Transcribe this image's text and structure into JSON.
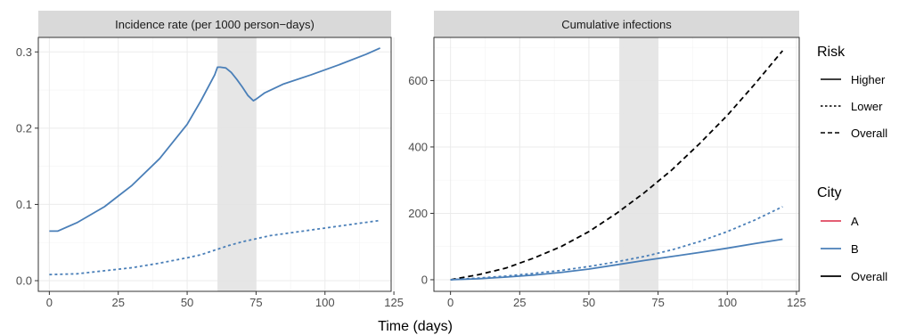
{
  "chart_data": [
    {
      "type": "line",
      "title": "Incidence rate (per 1000 person−days)",
      "xlim": [
        -4,
        124
      ],
      "ylim": [
        -0.014,
        0.319
      ],
      "x_ticks": [
        0,
        25,
        50,
        75,
        100,
        125
      ],
      "y_ticks": [
        0.0,
        0.1,
        0.2,
        0.3
      ],
      "y_tick_labels": [
        "0.0",
        "0.1",
        "0.2",
        "0.3"
      ],
      "shaded_interval": [
        61,
        75
      ],
      "series": [
        {
          "city": "B",
          "risk": "Higher",
          "x": [
            0,
            3,
            10,
            20,
            30,
            40,
            50,
            55,
            60,
            61,
            62,
            64,
            66,
            68,
            70,
            72,
            74,
            75,
            78,
            85,
            95,
            105,
            115,
            120
          ],
          "y": [
            0.065,
            0.065,
            0.076,
            0.097,
            0.125,
            0.16,
            0.205,
            0.236,
            0.27,
            0.28,
            0.28,
            0.279,
            0.273,
            0.264,
            0.254,
            0.243,
            0.236,
            0.238,
            0.246,
            0.258,
            0.27,
            0.283,
            0.297,
            0.305
          ]
        },
        {
          "city": "B",
          "risk": "Lower",
          "x": [
            0,
            10,
            20,
            30,
            40,
            50,
            55,
            60,
            65,
            70,
            75,
            80,
            90,
            100,
            110,
            120
          ],
          "y": [
            0.008,
            0.009,
            0.013,
            0.017,
            0.023,
            0.03,
            0.034,
            0.04,
            0.046,
            0.051,
            0.055,
            0.059,
            0.064,
            0.069,
            0.074,
            0.079
          ]
        }
      ]
    },
    {
      "type": "line",
      "title": "Cumulative infections",
      "xlim": [
        -6,
        126
      ],
      "ylim": [
        -35,
        730
      ],
      "x_ticks": [
        0,
        25,
        50,
        75,
        100,
        125
      ],
      "y_ticks": [
        0,
        200,
        400,
        600
      ],
      "y_tick_labels": [
        "0",
        "200",
        "400",
        "600"
      ],
      "shaded_interval": [
        61,
        75
      ],
      "series": [
        {
          "city": "Overall",
          "risk": "Overall",
          "x": [
            0,
            10,
            20,
            30,
            40,
            50,
            60,
            70,
            80,
            90,
            100,
            110,
            120
          ],
          "y": [
            0,
            15,
            35,
            65,
            100,
            145,
            200,
            262,
            331,
            410,
            495,
            590,
            690
          ]
        },
        {
          "city": "B",
          "risk": "Lower",
          "x": [
            0,
            10,
            20,
            30,
            40,
            50,
            60,
            70,
            80,
            90,
            100,
            110,
            120
          ],
          "y": [
            0,
            5,
            11,
            19,
            28,
            40,
            54,
            70,
            90,
            115,
            145,
            180,
            220
          ]
        },
        {
          "city": "B",
          "risk": "Higher",
          "x": [
            0,
            10,
            20,
            30,
            40,
            50,
            60,
            70,
            80,
            90,
            100,
            110,
            120
          ],
          "y": [
            0,
            3,
            8,
            14,
            22,
            32,
            45,
            58,
            70,
            82,
            95,
            109,
            122
          ]
        }
      ]
    }
  ],
  "x_axis_title": "Time (days)",
  "legend": {
    "risk_title": "Risk",
    "risk_items": [
      {
        "label": "Higher",
        "dash": "solid"
      },
      {
        "label": "Lower",
        "dash": "dotted"
      },
      {
        "label": "Overall",
        "dash": "dashed"
      }
    ],
    "city_title": "City",
    "city_items": [
      {
        "label": "A",
        "color": "#e0475f"
      },
      {
        "label": "B",
        "color": "#4a7fb8"
      },
      {
        "label": "Overall",
        "color": "#000000"
      }
    ]
  },
  "colors": {
    "A": "#e0475f",
    "B": "#4a7fb8",
    "Overall": "#000000",
    "panel_background": "#ffffff",
    "grid": "#ebebeb",
    "strip_background": "#d9d9d9",
    "shade": "#e3e3e3"
  },
  "grid": true,
  "legend_position": "right"
}
